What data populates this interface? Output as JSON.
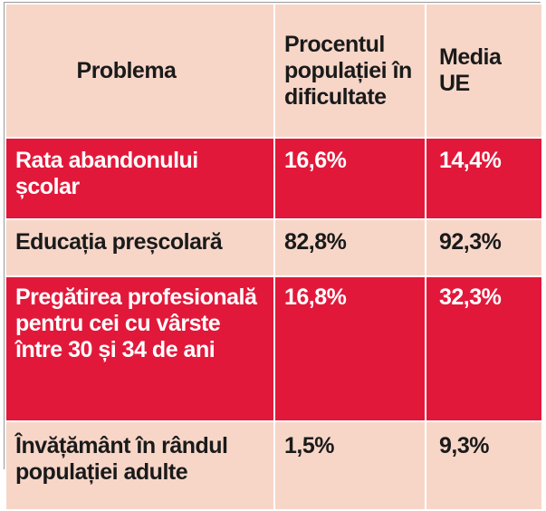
{
  "table": {
    "headers": {
      "problem": "Problema",
      "percent": "Procentul populației în dificultate",
      "eu_average": "Media UE"
    },
    "rows": [
      {
        "problem": "Rata abandonului școlar",
        "percent": "16,6%",
        "eu_average": "14,4%",
        "style": "red"
      },
      {
        "problem": "Educația preșcolară",
        "percent": "82,8%",
        "eu_average": "92,3%",
        "style": "pink"
      },
      {
        "problem": "Pregătirea profesională pentru cei cu vârste între 30 și 34 de ani",
        "percent": "16,8%",
        "eu_average": "32,3%",
        "style": "red"
      },
      {
        "problem": "Învățământ în rândul populației adulte",
        "percent": "1,5%",
        "eu_average": "9,3%",
        "style": "pink"
      }
    ]
  },
  "colors": {
    "red": "#e2183a",
    "pink": "#f7d6c8",
    "text_dark": "#1a1a1a",
    "text_light": "#ffffff"
  }
}
